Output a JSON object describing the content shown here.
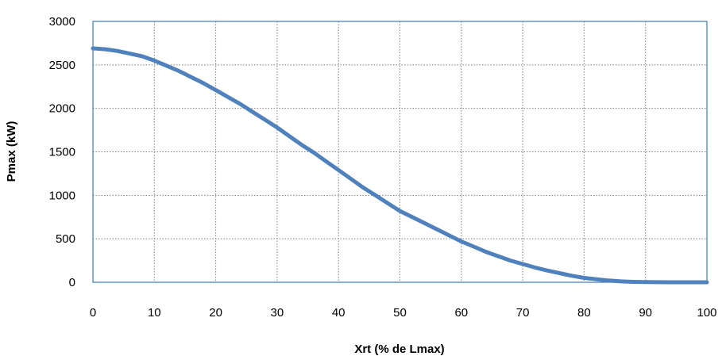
{
  "chart_data": {
    "type": "line",
    "xlabel": "Xrt (% de Lmax)",
    "ylabel": "Pmax (kW)",
    "xlim": [
      0,
      100
    ],
    "ylim": [
      0,
      3000
    ],
    "x_ticks": [
      0,
      10,
      20,
      30,
      40,
      50,
      60,
      70,
      80,
      90,
      100
    ],
    "y_ticks": [
      0,
      500,
      1000,
      1500,
      2000,
      2500,
      3000
    ],
    "grid": true,
    "legend": "none",
    "series": [
      {
        "color": "#4f81bd",
        "x": [
          0,
          2,
          4,
          6,
          8,
          10,
          12,
          14,
          16,
          18,
          20,
          22,
          24,
          26,
          28,
          30,
          32,
          34,
          36,
          38,
          40,
          42,
          44,
          46,
          48,
          50,
          52,
          54,
          56,
          58,
          60,
          62,
          64,
          66,
          68,
          70,
          72,
          74,
          76,
          78,
          80,
          82,
          84,
          86,
          88,
          90,
          92,
          94,
          96,
          98,
          100
        ],
        "y": [
          2690,
          2680,
          2660,
          2630,
          2600,
          2550,
          2490,
          2430,
          2360,
          2290,
          2210,
          2130,
          2050,
          1960,
          1870,
          1780,
          1680,
          1580,
          1490,
          1390,
          1290,
          1190,
          1090,
          1000,
          910,
          820,
          750,
          680,
          610,
          540,
          470,
          410,
          350,
          300,
          250,
          210,
          170,
          135,
          105,
          75,
          50,
          35,
          20,
          10,
          5,
          2,
          1,
          0,
          0,
          0,
          0
        ]
      }
    ]
  }
}
